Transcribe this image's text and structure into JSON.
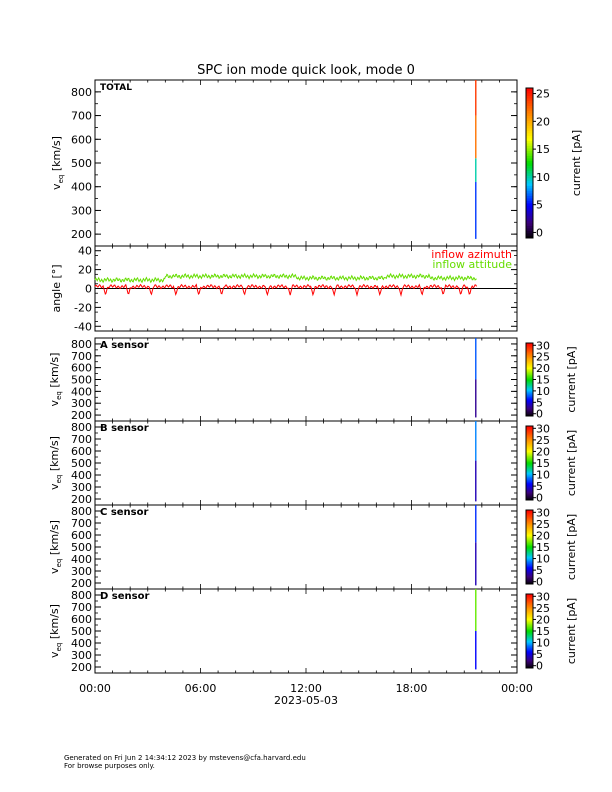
{
  "chart_data": {
    "title": "SPC ion mode quick look, mode 0",
    "xaxis": {
      "ticks": [
        "00:00",
        "06:00",
        "12:00",
        "18:00",
        "00:00"
      ],
      "date_label": "2023-05-03",
      "range_hours": [
        0,
        24
      ]
    },
    "panels": [
      {
        "type": "heatmap",
        "label": "TOTAL",
        "ylabel": "v_eq [km/s]",
        "ylabel_main": "v",
        "ylabel_sub": "eq",
        "ylabel_unit": "[km/s]",
        "ylim": [
          150,
          850
        ],
        "yticks": [
          200,
          300,
          400,
          500,
          600,
          700,
          800
        ],
        "colorbar": {
          "label": "current [pA]",
          "range": [
            -1,
            26
          ],
          "ticks": [
            0,
            5,
            10,
            15,
            20,
            25
          ]
        },
        "data_strip": {
          "time_hour": 21.65,
          "segments": [
            {
              "v_from": 180,
              "v_to": 420,
              "value": 6
            },
            {
              "v_from": 420,
              "v_to": 520,
              "value": 10
            },
            {
              "v_from": 520,
              "v_to": 700,
              "value": 22
            },
            {
              "v_from": 700,
              "v_to": 850,
              "value": 24
            }
          ]
        }
      },
      {
        "type": "line",
        "ylabel": "angle [°]",
        "ylim": [
          -45,
          45
        ],
        "yticks": [
          -40,
          -20,
          0,
          20,
          40
        ],
        "data_end_hour": 21.7,
        "series": [
          {
            "name": "inflow azimuth",
            "color": "#ff0000",
            "baseline": 2,
            "dips": [
              0.6,
              1.9,
              3.2,
              4.6,
              5.9,
              7.2,
              8.5,
              9.8,
              11.1,
              12.4,
              13.6,
              14.9,
              16.2,
              17.4,
              18.6,
              19.8,
              20.8,
              21.3
            ],
            "dip_depth": -7
          },
          {
            "name": "inflow attitude",
            "color": "#66dd00",
            "baseline": 9,
            "segments": [
              {
                "from": 0,
                "to": 4.0,
                "level": 9
              },
              {
                "from": 4.0,
                "to": 11.5,
                "level": 13
              },
              {
                "from": 11.5,
                "to": 16.5,
                "level": 11
              },
              {
                "from": 16.5,
                "to": 19.0,
                "level": 13
              },
              {
                "from": 19.0,
                "to": 21.7,
                "level": 11
              }
            ]
          }
        ]
      },
      {
        "type": "heatmap",
        "label": "A sensor",
        "ylabel_main": "v",
        "ylabel_sub": "eq",
        "ylabel_unit": "[km/s]",
        "ylim": [
          150,
          850
        ],
        "yticks": [
          200,
          300,
          400,
          500,
          600,
          700,
          800
        ],
        "colorbar": {
          "label": "current [pA]",
          "range": [
            -1,
            31
          ],
          "ticks": [
            0,
            5,
            10,
            15,
            20,
            25,
            30
          ]
        },
        "data_strip": {
          "time_hour": 21.65,
          "segments": [
            {
              "v_from": 180,
              "v_to": 500,
              "value": 3
            },
            {
              "v_from": 500,
              "v_to": 850,
              "value": 8
            }
          ]
        }
      },
      {
        "type": "heatmap",
        "label": "B sensor",
        "ylabel_main": "v",
        "ylabel_sub": "eq",
        "ylabel_unit": "[km/s]",
        "ylim": [
          150,
          850
        ],
        "yticks": [
          200,
          300,
          400,
          500,
          600,
          700,
          800
        ],
        "colorbar": {
          "label": "current [pA]",
          "range": [
            -1,
            31
          ],
          "ticks": [
            0,
            5,
            10,
            15,
            20,
            25,
            30
          ]
        },
        "data_strip": {
          "time_hour": 21.65,
          "segments": [
            {
              "v_from": 180,
              "v_to": 520,
              "value": 4
            },
            {
              "v_from": 520,
              "v_to": 850,
              "value": 9
            }
          ]
        }
      },
      {
        "type": "heatmap",
        "label": "C sensor",
        "ylabel_main": "v",
        "ylabel_sub": "eq",
        "ylabel_unit": "[km/s]",
        "ylim": [
          150,
          850
        ],
        "yticks": [
          200,
          300,
          400,
          500,
          600,
          700,
          800
        ],
        "colorbar": {
          "label": "current [pA]",
          "range": [
            -1,
            31
          ],
          "ticks": [
            0,
            5,
            10,
            15,
            20,
            25,
            30
          ]
        },
        "data_strip": {
          "time_hour": 21.65,
          "segments": [
            {
              "v_from": 180,
              "v_to": 540,
              "value": 4
            },
            {
              "v_from": 540,
              "v_to": 850,
              "value": 7
            }
          ]
        }
      },
      {
        "type": "heatmap",
        "label": "D sensor",
        "ylabel_main": "v",
        "ylabel_sub": "eq",
        "ylabel_unit": "[km/s]",
        "ylim": [
          150,
          850
        ],
        "yticks": [
          200,
          300,
          400,
          500,
          600,
          700,
          800
        ],
        "colorbar": {
          "label": "current [pA]",
          "range": [
            -1,
            31
          ],
          "ticks": [
            0,
            5,
            10,
            15,
            20,
            25,
            30
          ]
        },
        "data_strip": {
          "time_hour": 21.65,
          "segments": [
            {
              "v_from": 180,
              "v_to": 500,
              "value": 6
            },
            {
              "v_from": 500,
              "v_to": 850,
              "value": 17
            }
          ]
        }
      }
    ]
  },
  "footer": {
    "line1": "Generated on Fri Jun  2 14:34:12 2023 by mstevens@cfa.harvard.edu",
    "line2": "For browse purposes only."
  }
}
